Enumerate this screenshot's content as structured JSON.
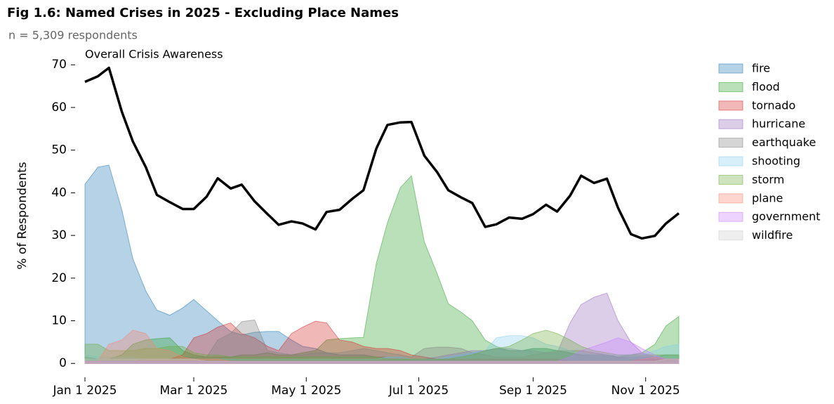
{
  "chart_data": {
    "type": "area",
    "title": "Fig 1.6: Named Crises in 2025 - Excluding Place Names",
    "subtitle": "n = 5,309 respondents",
    "y_label": "% of Respondents",
    "legend": "outside right",
    "x": [
      "2025-01-01",
      "2025-01-08",
      "2025-01-14",
      "2025-01-21",
      "2025-01-27",
      "2025-02-03",
      "2025-02-09",
      "2025-02-16",
      "2025-02-23",
      "2025-03-01",
      "2025-03-08",
      "2025-03-14",
      "2025-03-21",
      "2025-03-27",
      "2025-04-03",
      "2025-04-10",
      "2025-04-16",
      "2025-04-23",
      "2025-04-29",
      "2025-05-06",
      "2025-05-12",
      "2025-05-19",
      "2025-05-26",
      "2025-06-01",
      "2025-06-08",
      "2025-06-14",
      "2025-06-21",
      "2025-06-27",
      "2025-07-04",
      "2025-07-11",
      "2025-07-17",
      "2025-07-24",
      "2025-07-30",
      "2025-08-06",
      "2025-08-12",
      "2025-08-19",
      "2025-08-26",
      "2025-09-01",
      "2025-09-08",
      "2025-09-14",
      "2025-09-21",
      "2025-09-27",
      "2025-10-04",
      "2025-10-11",
      "2025-10-17",
      "2025-10-24",
      "2025-10-30",
      "2025-11-06",
      "2025-11-12",
      "2025-11-19"
    ],
    "xlim": [
      "2025-01-01",
      "2025-11-19"
    ],
    "xticks": [
      {
        "value": "2025-01-01",
        "label": "Jan 1 2025"
      },
      {
        "value": "2025-03-01",
        "label": "Mar 1 2025"
      },
      {
        "value": "2025-05-01",
        "label": "May 1 2025"
      },
      {
        "value": "2025-07-01",
        "label": "Jul 1 2025"
      },
      {
        "value": "2025-09-01",
        "label": "Sep 1 2025"
      },
      {
        "value": "2025-11-01",
        "label": "Nov 1 2025"
      }
    ],
    "ylim": [
      -3.5,
      73
    ],
    "yticks": [
      0,
      10,
      20,
      30,
      40,
      50,
      60,
      70
    ],
    "line": {
      "label": "Overall Crisis Awareness",
      "color": "#000000",
      "values": [
        66,
        67.3,
        69.3,
        59,
        52,
        46,
        39.5,
        37.8,
        36.2,
        36.2,
        39.1,
        43.4,
        41,
        41.9,
        38,
        35,
        32.5,
        33.3,
        32.8,
        31.4,
        35.5,
        36,
        38.6,
        40.6,
        50.4,
        55.9,
        56.5,
        56.6,
        48.7,
        44.8,
        40.6,
        38.9,
        37.6,
        32,
        32.6,
        34.2,
        33.9,
        35,
        37.2,
        35.6,
        39.3,
        44,
        42.3,
        43.3,
        36.5,
        30.3,
        29.3,
        29.9,
        32.8,
        35.2
      ]
    },
    "series": [
      {
        "name": "fire",
        "color": "#1f77b4",
        "values": [
          42,
          46,
          46.5,
          36,
          24.5,
          17,
          12.5,
          11.3,
          13,
          15,
          12.3,
          10,
          7.5,
          6.7,
          7.3,
          7.5,
          7.5,
          5.5,
          4,
          3.5,
          2.5,
          2,
          2,
          2,
          1.5,
          1.5,
          1.5,
          1,
          1,
          1,
          1.5,
          2,
          2.5,
          3,
          3.5,
          3,
          3,
          3.5,
          3.5,
          3,
          2.5,
          2,
          2,
          2,
          1.5,
          1.5,
          1.5,
          1.5,
          2,
          2
        ]
      },
      {
        "name": "flood",
        "color": "#2ca02c",
        "values": [
          1,
          1,
          1,
          2,
          4.5,
          5.5,
          5.8,
          6,
          3,
          2,
          1.5,
          1.5,
          1.5,
          2,
          2,
          2.5,
          2,
          2,
          2.5,
          3,
          5.5,
          5.8,
          6,
          6.1,
          23.5,
          33,
          41.2,
          44,
          28.5,
          21,
          14,
          12,
          10,
          5.5,
          4,
          3,
          3,
          3.5,
          3.5,
          3,
          2.5,
          2,
          2,
          2,
          1.5,
          2,
          2.5,
          4.5,
          8.8,
          11
        ]
      },
      {
        "name": "tornado",
        "color": "#d62728",
        "values": [
          0.5,
          0.5,
          0.5,
          0.5,
          0.5,
          1,
          1,
          1,
          2,
          6,
          7,
          8.5,
          9.5,
          7,
          6,
          4,
          3,
          7,
          8.5,
          9.9,
          9.5,
          5.5,
          5,
          4,
          3.5,
          3.5,
          3,
          2,
          1.5,
          1,
          1,
          1,
          1,
          1,
          1,
          1,
          1,
          1,
          1,
          1,
          0.5,
          0.5,
          0.5,
          0.5,
          0.5,
          0.5,
          1,
          1,
          1,
          1
        ]
      },
      {
        "name": "hurricane",
        "color": "#9467bd",
        "values": [
          0.5,
          0.5,
          0.5,
          0.5,
          0.5,
          0.5,
          0.5,
          0.5,
          0.5,
          0.5,
          0.5,
          0.5,
          0.5,
          0.5,
          0.5,
          0.5,
          0.5,
          0.5,
          0.5,
          0.5,
          0.5,
          0.5,
          0.5,
          0.5,
          0.5,
          0.5,
          0.5,
          0.5,
          1,
          1.5,
          2,
          2.5,
          3,
          3,
          3.5,
          3.5,
          3,
          3,
          2.5,
          2.5,
          9.5,
          13.8,
          15.5,
          16.5,
          10,
          5,
          2.5,
          1.5,
          1,
          1
        ]
      },
      {
        "name": "earthquake",
        "color": "#7f7f7f",
        "values": [
          1.5,
          1,
          1,
          1,
          1,
          1,
          1,
          1,
          1.5,
          1.5,
          1.5,
          5.5,
          7,
          9.8,
          10.2,
          3,
          2.5,
          2,
          2,
          2.5,
          2.5,
          2.5,
          3,
          3.5,
          3,
          2.5,
          2,
          1.5,
          3.5,
          3.8,
          3.8,
          3.5,
          2.5,
          2,
          1.5,
          1.5,
          1.5,
          2,
          2.5,
          3,
          3,
          3,
          2.5,
          2,
          1.5,
          1,
          1,
          1,
          1,
          1
        ]
      },
      {
        "name": "shooting",
        "color": "#87ceeb",
        "values": [
          2,
          1.5,
          1.5,
          1.5,
          1.5,
          1,
          1,
          1,
          1,
          1,
          1,
          1,
          1,
          1,
          1,
          1,
          1,
          1,
          1,
          1,
          1,
          1,
          1,
          1,
          1,
          1.5,
          1.5,
          1,
          1,
          1,
          1.5,
          2,
          2.5,
          3,
          6,
          6.5,
          6.5,
          6,
          4.5,
          4,
          3,
          2.5,
          2,
          2,
          2,
          2,
          2,
          3,
          4,
          4.5
        ]
      },
      {
        "name": "storm",
        "color": "#6aaa3a",
        "values": [
          4.5,
          4.5,
          3,
          3,
          3,
          3.5,
          3.5,
          4,
          4,
          2.5,
          2,
          2,
          1.5,
          1.5,
          1.5,
          1.5,
          1.5,
          1.5,
          1.5,
          1.5,
          1.5,
          1.5,
          1.5,
          1.5,
          1.5,
          1,
          1,
          1,
          1,
          1,
          1,
          1.5,
          2,
          3,
          3.5,
          4,
          5.5,
          7,
          7.8,
          7,
          5.5,
          4,
          3,
          2.5,
          2,
          2,
          2,
          2,
          2,
          2
        ]
      },
      {
        "name": "plane",
        "color": "#ff7f6e",
        "values": [
          0.5,
          0.5,
          4.5,
          5.5,
          7.8,
          7,
          3.5,
          3,
          1.5,
          1,
          1,
          1,
          0.5,
          0.5,
          0.5,
          0.5,
          0.5,
          0.5,
          0.5,
          0.5,
          0.5,
          0.5,
          0.5,
          0.5,
          0.5,
          0.5,
          0.5,
          0.5,
          0.5,
          0.5,
          0.5,
          0.5,
          0.5,
          0.5,
          0.5,
          0.5,
          0.5,
          0.5,
          0.5,
          0.5,
          0.5,
          0.5,
          0.5,
          0.5,
          0.5,
          0.5,
          1,
          1.5,
          1,
          1
        ]
      },
      {
        "name": "government",
        "color": "#c77cff",
        "values": [
          0.5,
          0.5,
          0.5,
          0.5,
          0.5,
          0.5,
          0.5,
          0.5,
          0.5,
          0.5,
          0.5,
          0.5,
          0.5,
          0.5,
          0.5,
          0.5,
          0.5,
          0.5,
          0.5,
          0.5,
          0.5,
          0.5,
          0.5,
          0.5,
          0.5,
          0.5,
          0.5,
          0.5,
          0.5,
          0.5,
          0.5,
          0.5,
          0.5,
          0.5,
          0.5,
          0.5,
          0.5,
          0.5,
          0.5,
          0.5,
          1.5,
          3,
          4,
          5,
          6,
          5,
          3.5,
          2,
          1,
          1
        ]
      },
      {
        "name": "wildfire",
        "color": "#cccccc",
        "values": [
          1,
          1,
          1,
          1,
          1,
          1,
          1,
          1,
          1,
          1,
          0.5,
          0.5,
          0.5,
          0.5,
          0.5,
          0.5,
          0.5,
          0.5,
          0.5,
          0.5,
          0.5,
          0.5,
          0.5,
          0.5,
          0.5,
          0.5,
          0.5,
          0.5,
          0.5,
          0.5,
          0.5,
          0.5,
          0.5,
          0.5,
          0.5,
          0.5,
          0.5,
          0.5,
          0.5,
          0.5,
          0.5,
          0.5,
          0.5,
          0.5,
          0.5,
          0.5,
          0.5,
          0.5,
          1,
          1
        ]
      }
    ]
  }
}
